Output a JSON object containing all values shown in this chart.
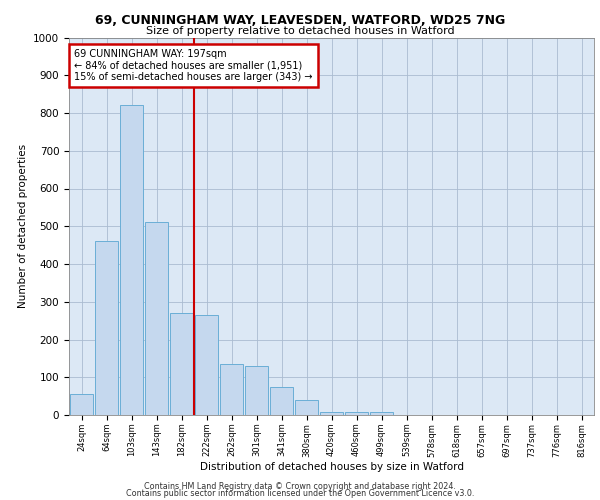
{
  "title1": "69, CUNNINGHAM WAY, LEAVESDEN, WATFORD, WD25 7NG",
  "title2": "Size of property relative to detached houses in Watford",
  "xlabel": "Distribution of detached houses by size in Watford",
  "ylabel": "Number of detached properties",
  "categories": [
    "24sqm",
    "64sqm",
    "103sqm",
    "143sqm",
    "182sqm",
    "222sqm",
    "262sqm",
    "301sqm",
    "341sqm",
    "380sqm",
    "420sqm",
    "460sqm",
    "499sqm",
    "539sqm",
    "578sqm",
    "618sqm",
    "657sqm",
    "697sqm",
    "737sqm",
    "776sqm",
    "816sqm"
  ],
  "values": [
    55,
    460,
    820,
    510,
    270,
    265,
    135,
    130,
    75,
    40,
    8,
    8,
    8,
    0,
    0,
    0,
    0,
    0,
    0,
    0,
    0
  ],
  "bar_color": "#c5d8ee",
  "bar_edgecolor": "#6aaed6",
  "background_color": "#dce8f5",
  "red_line_index": 4.5,
  "annotation_text": "69 CUNNINGHAM WAY: 197sqm\n← 84% of detached houses are smaller (1,951)\n15% of semi-detached houses are larger (343) →",
  "annotation_box_color": "#ffffff",
  "annotation_box_edgecolor": "#cc0000",
  "ylim": [
    0,
    1000
  ],
  "yticks": [
    0,
    100,
    200,
    300,
    400,
    500,
    600,
    700,
    800,
    900,
    1000
  ],
  "footer1": "Contains HM Land Registry data © Crown copyright and database right 2024.",
  "footer2": "Contains public sector information licensed under the Open Government Licence v3.0."
}
